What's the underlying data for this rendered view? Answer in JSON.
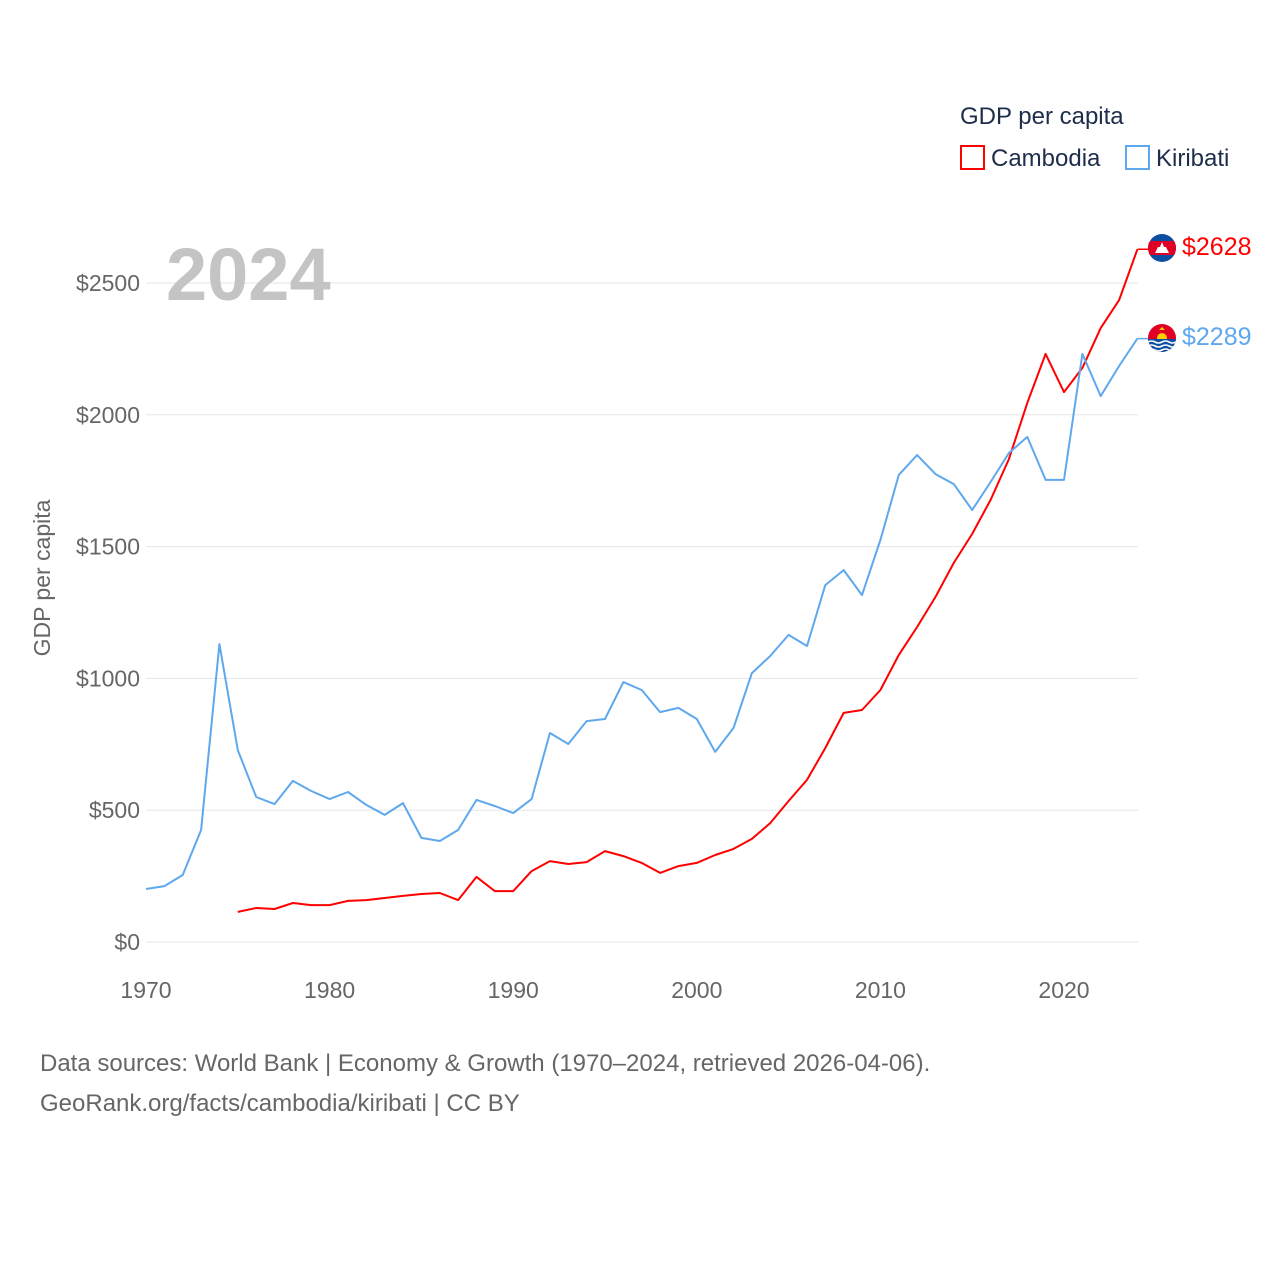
{
  "chart_data": {
    "type": "line",
    "year_label": "2024",
    "ylabel": "GDP per capita",
    "legend_title": "GDP per capita",
    "legend_position": "top-right",
    "xlim": [
      1970,
      2024
    ],
    "ylim": [
      0,
      2700
    ],
    "xticks": [
      1970,
      1980,
      1990,
      2000,
      2010,
      2020
    ],
    "xtick_labels": [
      "1970",
      "1980",
      "1990",
      "2000",
      "2010",
      "2020"
    ],
    "yticks": [
      0,
      500,
      1000,
      1500,
      2000,
      2500
    ],
    "ytick_labels": [
      "$0",
      "$500",
      "$1000",
      "$1500",
      "$2000",
      "$2500"
    ],
    "grid": true,
    "series": [
      {
        "name": "Cambodia",
        "color": "#ff0000",
        "end_label": "$2628",
        "flag": "cambodia-flag",
        "start_year": 1975,
        "values": [
          114,
          129,
          125,
          148,
          140,
          140,
          156,
          159,
          167,
          175,
          182,
          186,
          159,
          247,
          193,
          193,
          269,
          307,
          296,
          303,
          345,
          326,
          300,
          262,
          288,
          300,
          330,
          353,
          391,
          451,
          535,
          615,
          736,
          869,
          880,
          956,
          1089,
          1195,
          1309,
          1438,
          1548,
          1677,
          1832,
          2045,
          2231,
          2086,
          2178,
          2329,
          2435,
          2628
        ]
      },
      {
        "name": "Kiribati",
        "color": "#5ea8ee",
        "end_label": "$2289",
        "flag": "kiribati-flag",
        "start_year": 1970,
        "values": [
          201,
          212,
          254,
          425,
          1130,
          728,
          550,
          523,
          611,
          573,
          542,
          569,
          520,
          482,
          527,
          395,
          383,
          425,
          539,
          516,
          489,
          542,
          793,
          751,
          838,
          846,
          986,
          956,
          872,
          888,
          846,
          721,
          812,
          1020,
          1085,
          1165,
          1123,
          1354,
          1411,
          1316,
          1525,
          1772,
          1847,
          1775,
          1737,
          1639,
          1745,
          1855,
          1916,
          1753,
          1753,
          2231,
          2071,
          2185,
          2289
        ]
      }
    ]
  },
  "footer": {
    "line1": "Data sources: World Bank | Economy & Growth (1970–2024, retrieved 2026-04-06).",
    "line2": "GeoRank.org/facts/cambodia/kiribati | CC BY"
  }
}
